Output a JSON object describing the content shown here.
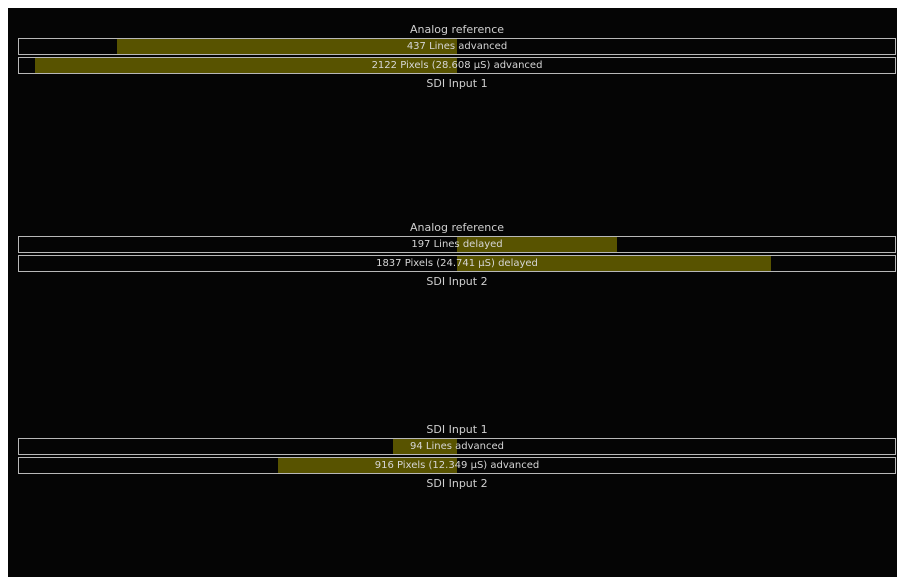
{
  "colors": {
    "background": "#050505",
    "bar_fill": "#585300",
    "bar_border": "#b8b8b8",
    "text": "#d6d6d6"
  },
  "panels": [
    {
      "top_label": "Analog reference",
      "bottom_label": "SDI Input 1",
      "lines": {
        "text": "437 Lines advanced",
        "direction": "advanced",
        "fill_start_pct": 11.2,
        "fill_end_pct": 50
      },
      "pixels": {
        "text": "2122 Pixels (28.608 µS) advanced",
        "direction": "advanced",
        "fill_start_pct": 1.8,
        "fill_end_pct": 50
      }
    },
    {
      "top_label": "Analog reference",
      "bottom_label": "SDI Input 2",
      "lines": {
        "text": "197 Lines delayed",
        "direction": "delayed",
        "fill_start_pct": 50,
        "fill_end_pct": 68.3
      },
      "pixels": {
        "text": "1837 Pixels (24.741 µS) delayed",
        "direction": "delayed",
        "fill_start_pct": 50,
        "fill_end_pct": 85.8
      }
    },
    {
      "top_label": "SDI Input 1",
      "bottom_label": "SDI Input 2",
      "lines": {
        "text": "94 Lines advanced",
        "direction": "advanced",
        "fill_start_pct": 42.7,
        "fill_end_pct": 50
      },
      "pixels": {
        "text": "916 Pixels (12.349 µS) advanced",
        "direction": "advanced",
        "fill_start_pct": 29.6,
        "fill_end_pct": 50
      }
    }
  ]
}
